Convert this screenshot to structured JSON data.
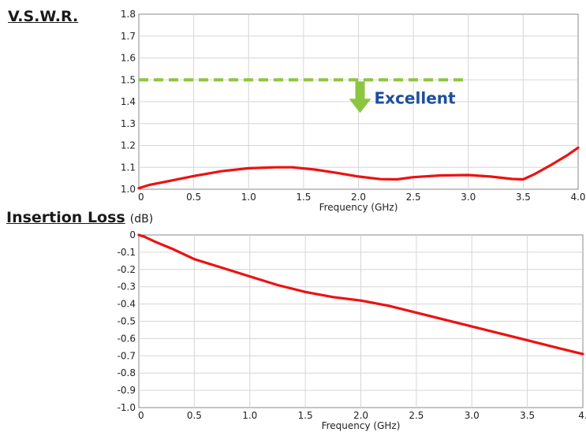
{
  "sections": {
    "vswr_title": "V.S.W.R.",
    "il_title": "Insertion Loss",
    "il_unit": "(dB)"
  },
  "annotation": {
    "text": "Excellent",
    "threshold": 1.5,
    "threshold_x_range": [
      0,
      3.0
    ],
    "arrow_x": 2.0,
    "line_color": "#8cc63f",
    "text_color": "#1f4e9c"
  },
  "colors": {
    "series": "#ee1111",
    "grid": "#d6d6d6",
    "axis": "#888888"
  },
  "chart_data": [
    {
      "type": "line",
      "title": "V.S.W.R.",
      "xlabel": "Frequency (GHz)",
      "ylabel": "",
      "xlim": [
        0,
        4.0
      ],
      "ylim": [
        1.0,
        1.8
      ],
      "grid": true,
      "x_ticks": [
        "0",
        "0.5",
        "1.0",
        "1.5",
        "2.0",
        "2.5",
        "3.0",
        "3.5",
        "4.0"
      ],
      "y_ticks": [
        "1.0",
        "1.1",
        "1.2",
        "1.3",
        "1.4",
        "1.5",
        "1.6",
        "1.7",
        "1.8"
      ],
      "x": [
        0,
        0.1,
        0.25,
        0.5,
        0.75,
        1.0,
        1.25,
        1.4,
        1.6,
        1.8,
        2.0,
        2.2,
        2.35,
        2.5,
        2.75,
        3.0,
        3.2,
        3.4,
        3.5,
        3.6,
        3.75,
        3.9,
        4.0
      ],
      "series": [
        {
          "values": [
            1.005,
            1.02,
            1.035,
            1.06,
            1.082,
            1.096,
            1.1,
            1.1,
            1.09,
            1.075,
            1.058,
            1.046,
            1.045,
            1.055,
            1.063,
            1.065,
            1.058,
            1.047,
            1.045,
            1.068,
            1.11,
            1.155,
            1.19
          ]
        }
      ]
    },
    {
      "type": "line",
      "title": "Insertion Loss",
      "xlabel": "Frequency (GHz)",
      "ylabel": "(dB)",
      "xlim": [
        0,
        4.0
      ],
      "ylim": [
        -1.0,
        0
      ],
      "grid": true,
      "x_ticks": [
        "0",
        "0.5",
        "1.0",
        "1.5",
        "2.0",
        "2.5",
        "3.0",
        "3.5",
        "4."
      ],
      "y_ticks": [
        "0",
        "-0.1",
        "-0.2",
        "-0.3",
        "-0.4",
        "-0.5",
        "-0.6",
        "-0.7",
        "-0.8",
        "-0.9",
        "-1.0"
      ],
      "x": [
        0,
        0.05,
        0.15,
        0.3,
        0.5,
        0.75,
        1.0,
        1.25,
        1.5,
        1.75,
        2.0,
        2.25,
        2.5,
        2.75,
        3.0,
        3.25,
        3.5,
        3.75,
        4.0
      ],
      "series": [
        {
          "values": [
            0,
            -0.01,
            -0.04,
            -0.08,
            -0.14,
            -0.19,
            -0.24,
            -0.29,
            -0.33,
            -0.36,
            -0.38,
            -0.41,
            -0.45,
            -0.49,
            -0.53,
            -0.57,
            -0.61,
            -0.65,
            -0.69
          ]
        }
      ]
    }
  ]
}
